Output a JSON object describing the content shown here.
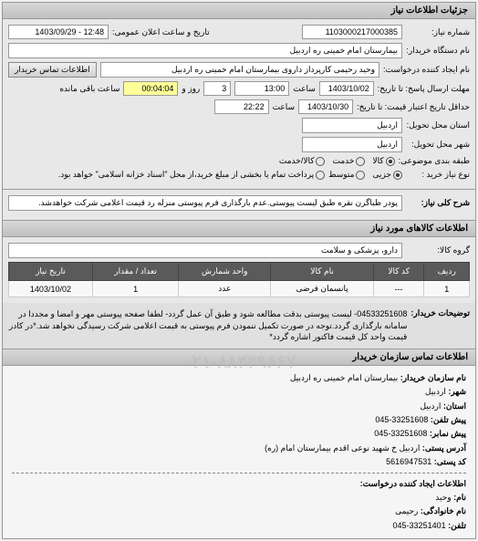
{
  "panel": {
    "title": "جزئیات اطلاعات نیاز"
  },
  "form": {
    "req_number_label": "شماره نیاز:",
    "req_number": "1103000217000385",
    "public_date_label": "تاریخ و ساعت اعلان عمومی:",
    "public_date": "12:48 - 1403/09/29",
    "buyer_device_label": "نام دستگاه خریدار:",
    "buyer_device": "بیمارستان امام خمینی ره اردبیل",
    "requester_label": "نام ایجاد کننده درخواست:",
    "requester": "وحید رحیمی کارپرداز داروی بیمارستان امام خمینی ره اردبیل",
    "contact_btn": "اطلاعات تماس خریدار",
    "deadline_label": "مهلت ارسال پاسخ: تا تاریخ:",
    "deadline_date": "1403/10/02",
    "deadline_time_label": "ساعت",
    "deadline_time": "13:00",
    "days_label": "روز و",
    "days": "3",
    "remain_label": "ساعت باقی مانده",
    "remain_time": "00:04:04",
    "price_deadline_label": "حداقل تاریخ اعتبار قیمت: تا تاریخ:",
    "price_date": "1403/10/30",
    "price_time_label": "ساعت",
    "price_time": "22:22",
    "province_label": "استان محل تحویل:",
    "province": "اردبیل",
    "city_label": "شهر محل تحویل:",
    "city": "اردبیل",
    "budget_label": "طبقه بندی موضوعی:",
    "budget_r1": "کالا",
    "budget_r2": "خدمت",
    "budget_r3": "کالا/خدمت",
    "purchase_label": "نوع نیاز خرید :",
    "purchase_r1": "جزیی",
    "purchase_r2": "متوسط",
    "purchase_note": "پرداخت تمام یا بخشی از مبلغ خرید،از محل \"اسناد خزانه اسلامی\" خواهد بود.",
    "keyword_label": "شرح کلی نیاز:",
    "keyword": "پودر طباگرن نقره طبق لیست پیوستی.عدم بارگذاری فرم پیوستی منزله رد قیمت اعلامی شرکت خواهدشد."
  },
  "goods": {
    "title": "اطلاعات کالاهای مورد نیاز",
    "group_label": "گروه کالا:",
    "group_value": "دارو، پزشکی و سلامت",
    "columns": [
      "ردیف",
      "کد کالا",
      "نام کالا",
      "واحد شمارش",
      "تعداد / مقدار",
      "تاریخ نیاز"
    ],
    "rows": [
      [
        "1",
        "---",
        "پانسمان فرضی",
        "عدد",
        "1",
        "1403/10/02"
      ]
    ]
  },
  "desc": {
    "label": "توضیحات خریدار:",
    "text": "04533251608- لیست پیوستی بدقت مطالعه شود و طبق آن عمل گردد- لطفا صفحه پیوستی مهر و امضا و مجددا در سامانه بارگذاری گردد.توجه در صورت تکمیل ننمودن فرم پیوستی به قیمت اعلامی شرکت رسیدگی نخواهد شد.*در کادر قیمت واحد کل قیمت فاکتور اشاره گردد*"
  },
  "contact": {
    "title": "اطلاعات تماس سازمان خریدار",
    "org_label": "نام سازمان خریدار:",
    "org": "بیمارستان امام خمینی ره اردبیل",
    "city_label": "شهر:",
    "city": "اردبیل",
    "province_label": "استان:",
    "province": "اردبیل",
    "phone_label": "پیش تلفن:",
    "phone": "33251608-045",
    "fax_label": "پیش نمابر:",
    "fax": "33251608-045",
    "postal_addr_label": "آدرس پستی:",
    "postal_addr": "اردبیل خ شهید نوعی اقدم بیمارستان امام (ره)",
    "postal_code_label": "کد پستی:",
    "postal_code": "5616947531",
    "creator_title": "اطلاعات ایجاد کننده درخواست:",
    "name_label": "نام:",
    "name": "وحید",
    "family_label": "نام خانوادگی:",
    "family": "رحیمی",
    "tel_label": "تلفن:",
    "tel": "33251401-045",
    "watermark": "۰۲۱-۸۸۳۴۹۶۶۷"
  }
}
